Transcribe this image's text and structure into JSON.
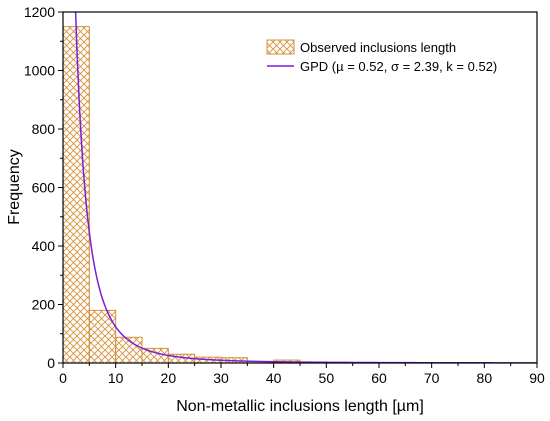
{
  "chart_data": {
    "type": "bar",
    "xlabel": "Non-metallic inclusions length [µm]",
    "ylabel": "Frequency",
    "xlim": [
      0,
      90
    ],
    "ylim": [
      0,
      1200
    ],
    "xticks": [
      0,
      10,
      20,
      30,
      40,
      50,
      60,
      70,
      80,
      90
    ],
    "yticks": [
      0,
      200,
      400,
      600,
      800,
      1000,
      1200
    ],
    "grid": false,
    "legend_position": "top-right",
    "histogram": {
      "name": "Observed inclusions length",
      "bin_width": 5,
      "bins": [
        {
          "start": 0,
          "value": 1150
        },
        {
          "start": 5,
          "value": 180
        },
        {
          "start": 10,
          "value": 88
        },
        {
          "start": 15,
          "value": 50
        },
        {
          "start": 20,
          "value": 30
        },
        {
          "start": 25,
          "value": 20
        },
        {
          "start": 30,
          "value": 18
        },
        {
          "start": 35,
          "value": 5
        },
        {
          "start": 40,
          "value": 10
        },
        {
          "start": 45,
          "value": 3
        },
        {
          "start": 50,
          "value": 2
        },
        {
          "start": 55,
          "value": 1
        },
        {
          "start": 60,
          "value": 1
        },
        {
          "start": 65,
          "value": 1
        },
        {
          "start": 70,
          "value": 1
        }
      ],
      "color": "#d4913a"
    },
    "series": [
      {
        "name": "GPD (µ = 0.52, σ = 2.39, k = 0.52)",
        "type": "line",
        "color": "#7a1fd6",
        "model": "generalized-pareto",
        "mu": 0.52,
        "sigma": 2.39,
        "k": 0.52,
        "x_range": [
          2.2,
          90
        ]
      }
    ]
  }
}
